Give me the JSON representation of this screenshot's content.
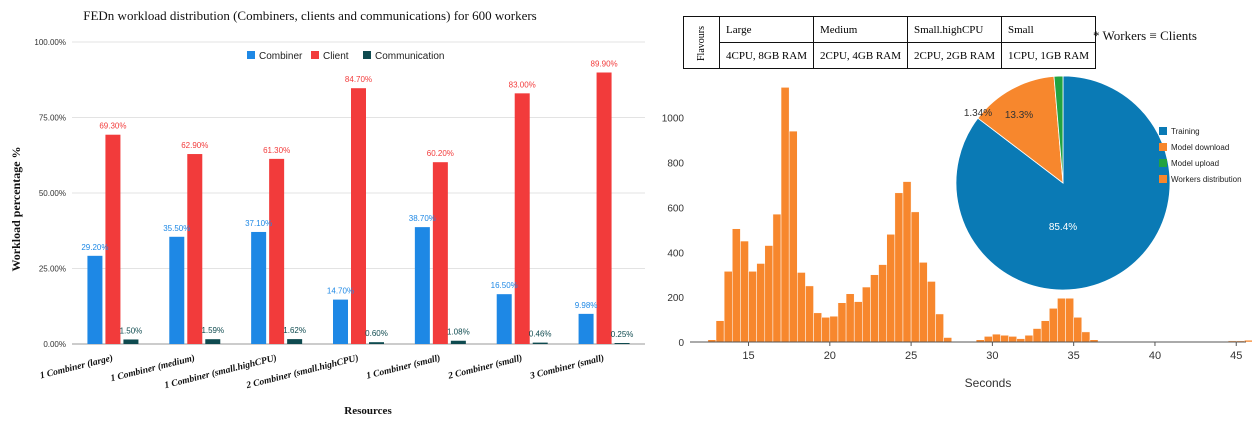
{
  "chart_data": [
    {
      "type": "bar",
      "title": "FEDn workload distribution (Combiners, clients and communications) for 600 workers",
      "xlabel": "Resources",
      "ylabel": "Workload percentage %",
      "ylim": [
        0,
        100
      ],
      "yticks": [
        "0.00%",
        "25.00%",
        "50.00%",
        "75.00%",
        "100.00%"
      ],
      "grid": true,
      "legend": "top-center",
      "categories": [
        "1 Combiner (large)",
        "1 Combiner (medium)",
        "1 Combiner (small.highCPU)",
        "2 Combiner (small.highCPU)",
        "1 Combiner (small)",
        "2 Combiner (small)",
        "3 Combiner (small)"
      ],
      "series": [
        {
          "name": "Combiner",
          "color": "#1e88e5",
          "values": [
            29.2,
            35.5,
            37.1,
            14.7,
            38.7,
            16.5,
            9.98
          ],
          "labels": [
            "29.20%",
            "35.50%",
            "37.10%",
            "14.70%",
            "38.70%",
            "16.50%",
            "9.98%"
          ]
        },
        {
          "name": "Client",
          "color": "#f23b3b",
          "values": [
            69.3,
            62.9,
            61.3,
            84.7,
            60.2,
            83.0,
            89.9
          ],
          "labels": [
            "69.30%",
            "62.90%",
            "61.30%",
            "84.70%",
            "60.20%",
            "83.00%",
            "89.90%"
          ]
        },
        {
          "name": "Communication",
          "color": "#0e4a4f",
          "values": [
            1.5,
            1.59,
            1.62,
            0.6,
            1.08,
            0.46,
            0.25
          ],
          "labels": [
            "1.50%",
            "1.59%",
            "1.62%",
            "0.60%",
            "1.08%",
            "0.46%",
            "0.25%"
          ]
        }
      ]
    },
    {
      "type": "bar",
      "subtype": "histogram",
      "title": "",
      "xlabel": "Seconds",
      "ylabel": "",
      "xlim": [
        11.4,
        45.6
      ],
      "ylim": [
        0,
        1150
      ],
      "xticks": [
        15,
        20,
        25,
        30,
        35,
        40,
        45
      ],
      "yticks": [
        0,
        200,
        400,
        600,
        800,
        1000
      ],
      "bin_width": 0.5,
      "bin_start": 12.5,
      "color": "#f7872d",
      "values": [
        10,
        95,
        315,
        505,
        450,
        315,
        350,
        430,
        570,
        1135,
        940,
        310,
        250,
        130,
        110,
        115,
        175,
        215,
        180,
        245,
        300,
        345,
        480,
        665,
        715,
        580,
        355,
        270,
        125,
        20,
        0,
        0,
        0,
        10,
        25,
        35,
        30,
        25,
        15,
        30,
        60,
        95,
        150,
        195,
        195,
        110,
        45,
        10,
        0,
        0,
        0,
        0,
        0,
        0,
        0,
        0,
        0,
        0,
        0,
        0,
        0,
        0,
        0,
        0,
        5,
        5,
        8,
        5,
        3
      ]
    },
    {
      "type": "pie",
      "title": "",
      "legend": "right",
      "slices": [
        {
          "name": "Training",
          "value": 85.4,
          "color": "#0a7ab5",
          "label": "85.4%"
        },
        {
          "name": "Model download",
          "value": 13.3,
          "color": "#f7872d",
          "label": "13.3%"
        },
        {
          "name": "Model upload",
          "value": 1.34,
          "color": "#21a341",
          "label": "1.34%"
        },
        {
          "name": "Workers distribution",
          "value": 0.0,
          "color": "#f7872d",
          "label": ""
        }
      ]
    }
  ],
  "flavours_table": {
    "header": "Flavours",
    "names": [
      "Large",
      "Medium",
      "Small.highCPU",
      "Small"
    ],
    "specs": [
      "4CPU, 8GB RAM",
      "2CPU, 4GB RAM",
      "2CPU, 2GB RAM",
      "1CPU, 1GB RAM"
    ]
  },
  "note": "* Workers ≡ Clients"
}
